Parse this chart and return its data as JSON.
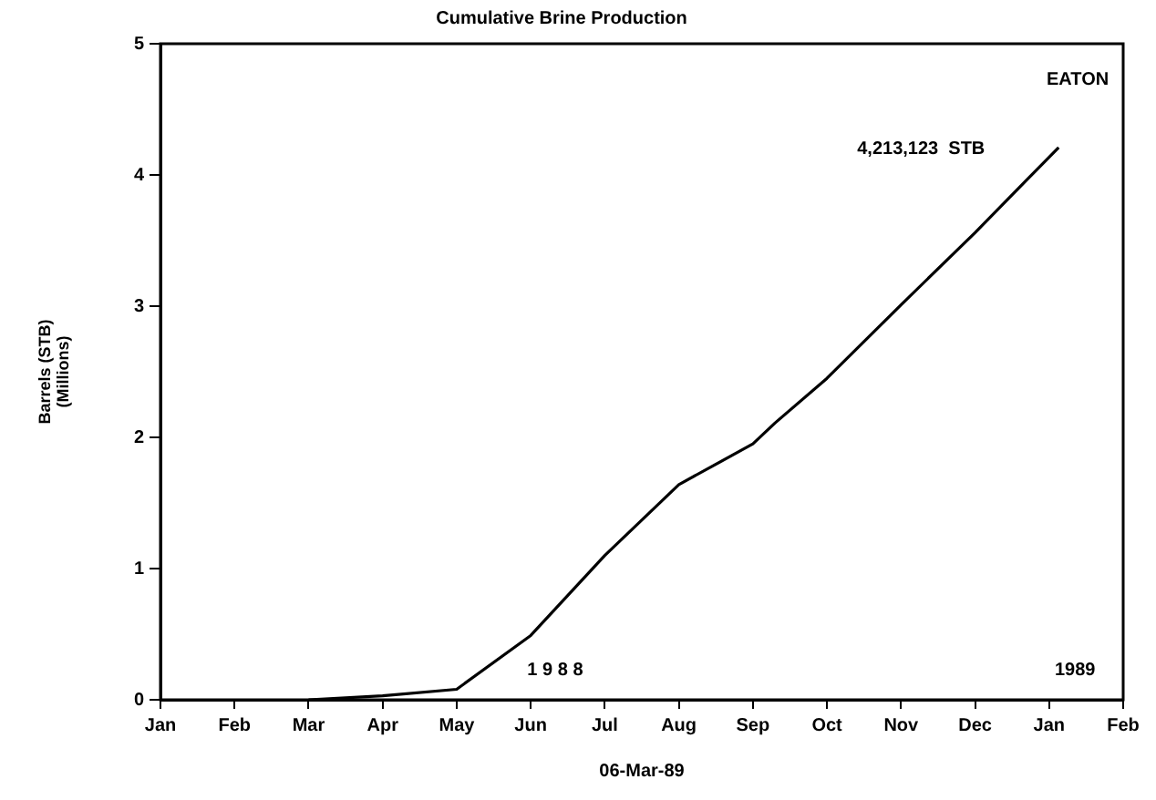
{
  "chart_data": {
    "type": "line",
    "title": "Cumulative Brine Production",
    "xlabel": "06-Mar-89",
    "ylabel": "Barrels (STB)\n(Millions)",
    "x": [
      "1988-03-01",
      "1988-04-01",
      "1988-05-01",
      "1988-06-01",
      "1988-07-01",
      "1988-08-01",
      "1988-09-01",
      "1988-09-10",
      "1988-10-01",
      "1988-11-01",
      "1988-12-01",
      "1988-12-22",
      "1989-01-05"
    ],
    "series": [
      {
        "color": "#000000",
        "values": [
          0,
          0.03,
          0.08,
          0.49,
          1.1,
          1.64,
          1.95,
          2.11,
          2.45,
          3.01,
          3.56,
          3.95,
          4.21
        ]
      }
    ],
    "xlim": [
      "1988-01-01",
      "1989-02-01"
    ],
    "xticks": [
      {
        "value": "1988-01-01",
        "label": "Jan"
      },
      {
        "value": "1988-02-01",
        "label": "Feb"
      },
      {
        "value": "1988-03-01",
        "label": "Mar"
      },
      {
        "value": "1988-04-01",
        "label": "Apr"
      },
      {
        "value": "1988-05-01",
        "label": "May"
      },
      {
        "value": "1988-06-01",
        "label": "Jun"
      },
      {
        "value": "1988-07-01",
        "label": "Jul"
      },
      {
        "value": "1988-08-01",
        "label": "Aug"
      },
      {
        "value": "1988-09-01",
        "label": "Sep"
      },
      {
        "value": "1988-10-01",
        "label": "Oct"
      },
      {
        "value": "1988-11-01",
        "label": "Nov"
      },
      {
        "value": "1988-12-01",
        "label": "Dec"
      },
      {
        "value": "1989-01-01",
        "label": "Jan"
      },
      {
        "value": "1989-02-01",
        "label": "Feb"
      }
    ],
    "ylim": [
      0,
      5
    ],
    "yticks": [
      0,
      1,
      2,
      3,
      4,
      5
    ],
    "grid": false,
    "legend": false,
    "marker": "none",
    "line_style": "solid",
    "annotations": [
      "EATON",
      "4,213,123  STB",
      "1 9 8 8",
      "1989"
    ]
  }
}
